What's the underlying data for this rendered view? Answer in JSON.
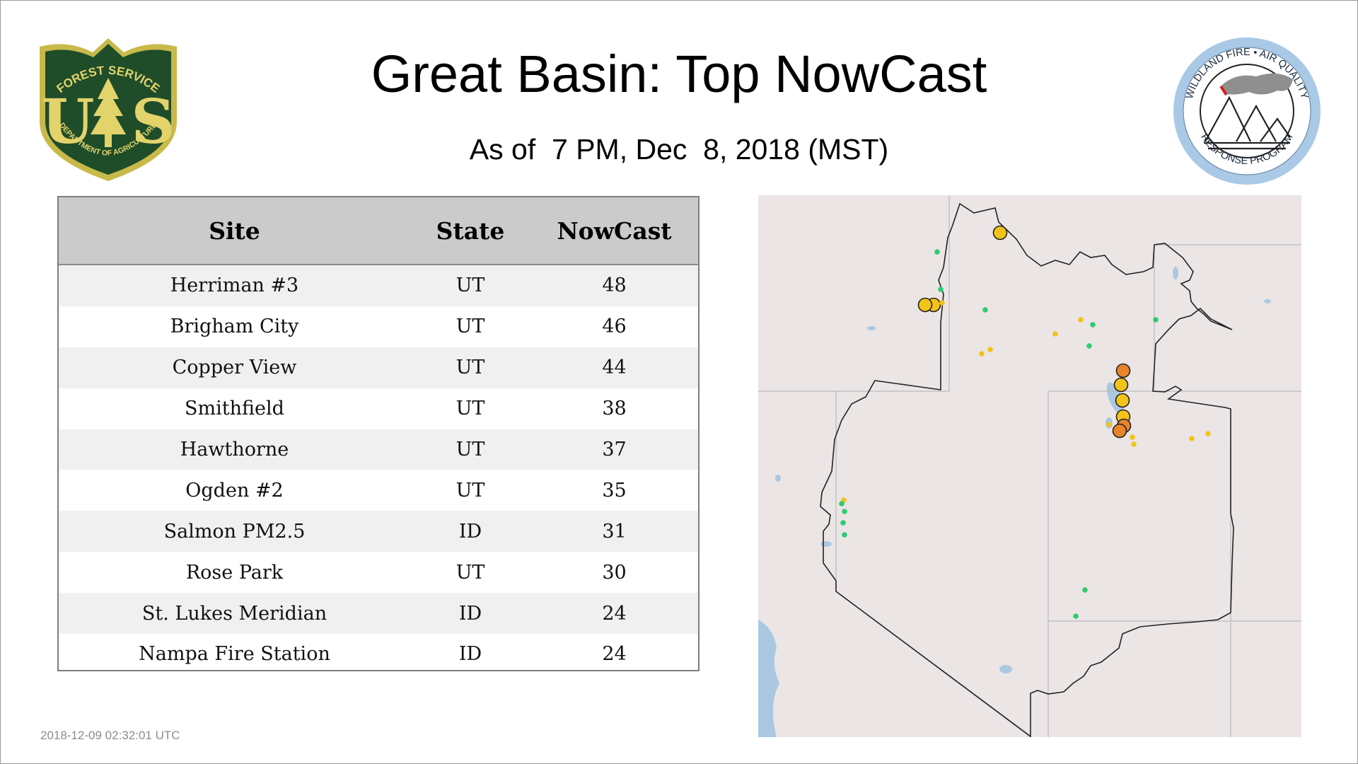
{
  "header": {
    "title": "Great Basin: Top NowCast",
    "subtitle": "As of  7 PM, Dec  8, 2018 (MST)"
  },
  "logos": {
    "forest_service": {
      "top_text": "FOREST SERVICE",
      "letters": "US",
      "bottom_text": "DEPARTMENT OF AGRICULTURE",
      "colors": {
        "shield": "#1f4d2a",
        "rim": "#c8b94a",
        "tree": "#e3d36b"
      }
    },
    "wildland_fire": {
      "ring_text_top": "WILDLAND FIRE • AIR QUALITY",
      "ring_text_bottom": "RESPONSE PROGRAM",
      "colors": {
        "ring": "#a9c9e6",
        "smoke": "#8f8f8f",
        "flame": "#cc2222"
      }
    }
  },
  "table": {
    "headers": [
      "Site",
      "State",
      "NowCast"
    ],
    "rows": [
      [
        "Herriman #3",
        "UT",
        "48"
      ],
      [
        "Brigham City",
        "UT",
        "46"
      ],
      [
        "Copper View",
        "UT",
        "44"
      ],
      [
        "Smithfield",
        "UT",
        "38"
      ],
      [
        "Hawthorne",
        "UT",
        "37"
      ],
      [
        "Ogden #2",
        "UT",
        "35"
      ],
      [
        "Salmon PM2.5",
        "ID",
        "31"
      ],
      [
        "Rose Park",
        "UT",
        "30"
      ],
      [
        "St. Lukes Meridian",
        "ID",
        "24"
      ],
      [
        "Nampa Fire Station",
        "ID",
        "24"
      ]
    ]
  },
  "map": {
    "region": "Great Basin",
    "colors": {
      "land": "#ece5e5",
      "water": "#aac8e2",
      "boundary": "#222222",
      "state_lines": "#b8b8c4",
      "aqi_good": "#2ecc71",
      "aqi_moderate": "#f2c318",
      "aqi_usg": "#e8842a"
    }
  },
  "footer": {
    "timestamp": "2018-12-09 02:32:01 UTC"
  }
}
